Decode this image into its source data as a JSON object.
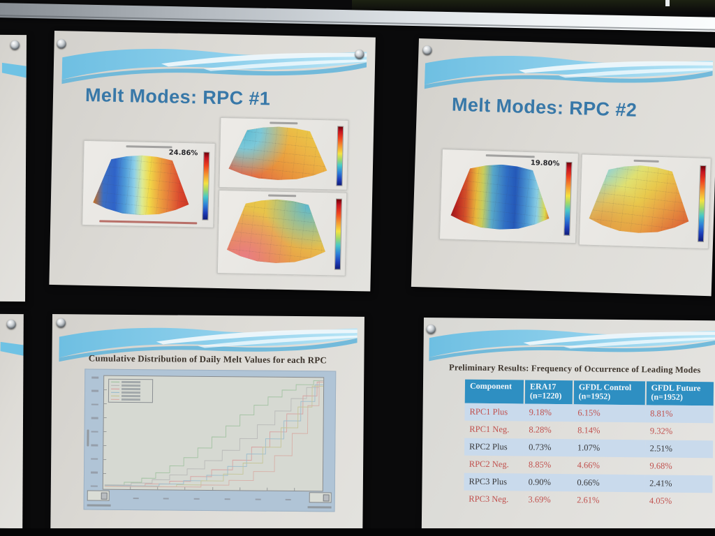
{
  "board": {
    "background_color": "#0a0a0b",
    "top_rail_colors": [
      "#858b91",
      "#fbfdfe"
    ],
    "paper_color": "#dddbd6",
    "pushpin_color": "silver"
  },
  "theme": {
    "wave_blue": "#7cc6e6",
    "title_blue": "#3878a8",
    "table_header_bg": "#2e8fc2",
    "banded_row_bg": "#c9daec",
    "red_text": "#c0504d",
    "colorbar_gradient": [
      "#6e0008",
      "#ee4420",
      "#f4e242",
      "#48c8c8",
      "#101c78"
    ]
  },
  "slides": {
    "rpc1": {
      "title": "Melt Modes: RPC #1",
      "variance_label": "24.86%"
    },
    "rpc2": {
      "title": "Melt Modes: RPC #2",
      "variance_label": "19.80%"
    },
    "cdf": {
      "title": "Cumulative Distribution of Daily Melt Values for each RPC",
      "legend_colors": [
        "#9abf9a",
        "#b4b4b4",
        "#d89a9a",
        "#92b8cc",
        "#c2c290",
        "#d8a8a0"
      ]
    },
    "freq": {
      "title": "Preliminary Results: Frequency of Occurrence of Leading Modes",
      "table": {
        "columns": [
          {
            "label": "Component",
            "sub": ""
          },
          {
            "label": "ERA17",
            "sub": "(n=1220)"
          },
          {
            "label": "GFDL Control",
            "sub": "(n=1952)"
          },
          {
            "label": "GFDL Future",
            "sub": "(n=1952)"
          }
        ],
        "rows": [
          {
            "component": "RPC1 Plus",
            "values": [
              "9.18%",
              "6.15%",
              "8.81%"
            ],
            "red": true,
            "banded": true
          },
          {
            "component": "RPC1 Neg.",
            "values": [
              "8.28%",
              "8.14%",
              "9.32%"
            ],
            "red": true,
            "banded": false
          },
          {
            "component": "RPC2 Plus",
            "values": [
              "0.73%",
              "1.07%",
              "2.51%"
            ],
            "red": false,
            "banded": true
          },
          {
            "component": "RPC2 Neg.",
            "values": [
              "8.85%",
              "4.66%",
              "9.68%"
            ],
            "red": true,
            "banded": false
          },
          {
            "component": "RPC3 Plus",
            "values": [
              "0.90%",
              "0.66%",
              "2.41%"
            ],
            "red": false,
            "banded": true
          },
          {
            "component": "RPC3 Neg.",
            "values": [
              "3.69%",
              "2.61%",
              "4.05%"
            ],
            "red": true,
            "banded": false
          }
        ]
      }
    }
  },
  "chart_data": [
    {
      "type": "table",
      "title": "Preliminary Results: Frequency of Occurrence of Leading Modes",
      "columns": [
        "Component",
        "ERA17 (n=1220)",
        "GFDL Control (n=1952)",
        "GFDL Future (n=1952)"
      ],
      "rows": [
        [
          "RPC1 Plus",
          "9.18%",
          "6.15%",
          "8.81%"
        ],
        [
          "RPC1 Neg.",
          "8.28%",
          "8.14%",
          "9.32%"
        ],
        [
          "RPC2 Plus",
          "0.73%",
          "1.07%",
          "2.51%"
        ],
        [
          "RPC2 Neg.",
          "8.85%",
          "4.66%",
          "9.68%"
        ],
        [
          "RPC3 Plus",
          "0.90%",
          "0.66%",
          "2.41%"
        ],
        [
          "RPC3 Neg.",
          "3.69%",
          "2.61%",
          "4.05%"
        ]
      ]
    },
    {
      "type": "line",
      "title": "Cumulative Distribution of Daily Melt Values for each RPC",
      "series_count": 6,
      "note": "Six cumulative step curves rising from lower-left to upper-right; legend text and axis tick labels are too small to read in the photograph."
    }
  ]
}
